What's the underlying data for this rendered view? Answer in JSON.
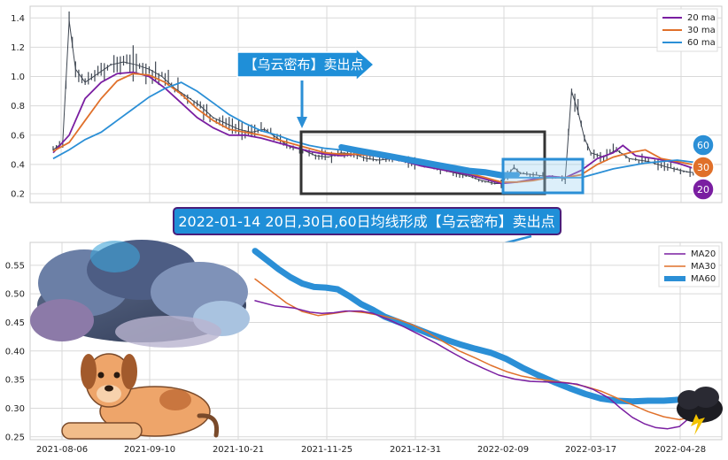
{
  "annotations": {
    "top_arrow_label": "【乌云密布】卖出点",
    "bottom_banner": "2022-01-14 20日,30日,60日均线形成【乌云密布】卖出点"
  },
  "badges": [
    "60",
    "30",
    "20"
  ],
  "colors": {
    "ma20": "#7a1ea1",
    "ma30": "#e0702a",
    "ma60": "#2b8fd6",
    "candle": "#3f4752",
    "banner_bg": "#1f8fd8",
    "banner_border": "#4a1d7a"
  },
  "chart_data": [
    {
      "type": "line",
      "x_ticks": [],
      "ylim": [
        0.14,
        1.48
      ],
      "y_ticks": [
        0.2,
        0.4,
        0.6,
        0.8,
        1.0,
        1.2,
        1.4
      ],
      "y_tick_labels": [
        "0.2",
        "0.4",
        "0.6",
        "0.8",
        "1.0",
        "1.2",
        "1.4"
      ],
      "grid": true,
      "legend": "top-right",
      "price_series": [
        [
          0,
          0.5
        ],
        [
          3,
          0.55
        ],
        [
          5,
          1.38
        ],
        [
          7,
          1.05
        ],
        [
          10,
          0.96
        ],
        [
          14,
          1.02
        ],
        [
          18,
          1.08
        ],
        [
          22,
          1.1
        ],
        [
          26,
          1.08
        ],
        [
          30,
          1.05
        ],
        [
          34,
          1.0
        ],
        [
          38,
          0.92
        ],
        [
          42,
          0.86
        ],
        [
          46,
          0.8
        ],
        [
          50,
          0.72
        ],
        [
          54,
          0.68
        ],
        [
          58,
          0.64
        ],
        [
          62,
          0.62
        ],
        [
          66,
          0.64
        ],
        [
          70,
          0.58
        ],
        [
          74,
          0.52
        ],
        [
          78,
          0.5
        ],
        [
          82,
          0.46
        ],
        [
          86,
          0.45
        ],
        [
          90,
          0.48
        ],
        [
          94,
          0.47
        ],
        [
          98,
          0.44
        ],
        [
          102,
          0.43
        ],
        [
          106,
          0.44
        ],
        [
          110,
          0.42
        ],
        [
          114,
          0.4
        ],
        [
          118,
          0.38
        ],
        [
          122,
          0.36
        ],
        [
          126,
          0.34
        ],
        [
          130,
          0.32
        ],
        [
          134,
          0.29
        ],
        [
          138,
          0.27
        ],
        [
          140,
          0.27
        ],
        [
          142,
          0.33
        ],
        [
          144,
          0.38
        ],
        [
          146,
          0.34
        ],
        [
          150,
          0.33
        ],
        [
          154,
          0.32
        ],
        [
          158,
          0.31
        ],
        [
          160,
          0.3
        ],
        [
          162,
          0.9
        ],
        [
          164,
          0.76
        ],
        [
          166,
          0.58
        ],
        [
          168,
          0.48
        ],
        [
          172,
          0.45
        ],
        [
          176,
          0.5
        ],
        [
          180,
          0.44
        ],
        [
          186,
          0.42
        ],
        [
          192,
          0.38
        ],
        [
          198,
          0.35
        ],
        [
          202,
          0.34
        ]
      ],
      "series": [
        {
          "name": "20 ma",
          "values": [
            [
              0,
              0.48
            ],
            [
              5,
              0.6
            ],
            [
              10,
              0.85
            ],
            [
              15,
              0.96
            ],
            [
              20,
              1.02
            ],
            [
              25,
              1.03
            ],
            [
              30,
              1.0
            ],
            [
              35,
              0.92
            ],
            [
              40,
              0.82
            ],
            [
              45,
              0.72
            ],
            [
              50,
              0.65
            ],
            [
              55,
              0.6
            ],
            [
              60,
              0.6
            ],
            [
              65,
              0.58
            ],
            [
              70,
              0.55
            ],
            [
              75,
              0.52
            ],
            [
              80,
              0.49
            ],
            [
              85,
              0.47
            ],
            [
              90,
              0.46
            ],
            [
              95,
              0.47
            ],
            [
              100,
              0.46
            ],
            [
              105,
              0.44
            ],
            [
              110,
              0.42
            ],
            [
              115,
              0.39
            ],
            [
              120,
              0.37
            ],
            [
              125,
              0.35
            ],
            [
              130,
              0.33
            ],
            [
              135,
              0.3
            ],
            [
              140,
              0.27
            ],
            [
              145,
              0.28
            ],
            [
              150,
              0.3
            ],
            [
              155,
              0.32
            ],
            [
              160,
              0.31
            ],
            [
              165,
              0.36
            ],
            [
              170,
              0.44
            ],
            [
              175,
              0.48
            ],
            [
              178,
              0.53
            ],
            [
              182,
              0.46
            ],
            [
              188,
              0.44
            ],
            [
              195,
              0.41
            ],
            [
              202,
              0.36
            ]
          ]
        },
        {
          "name": "30 ma",
          "values": [
            [
              0,
              0.49
            ],
            [
              5,
              0.55
            ],
            [
              10,
              0.7
            ],
            [
              15,
              0.85
            ],
            [
              20,
              0.97
            ],
            [
              25,
              1.02
            ],
            [
              30,
              1.01
            ],
            [
              35,
              0.96
            ],
            [
              40,
              0.88
            ],
            [
              45,
              0.78
            ],
            [
              50,
              0.7
            ],
            [
              55,
              0.64
            ],
            [
              60,
              0.62
            ],
            [
              65,
              0.6
            ],
            [
              70,
              0.57
            ],
            [
              75,
              0.54
            ],
            [
              80,
              0.51
            ],
            [
              85,
              0.48
            ],
            [
              90,
              0.47
            ],
            [
              95,
              0.47
            ],
            [
              100,
              0.46
            ],
            [
              105,
              0.45
            ],
            [
              110,
              0.43
            ],
            [
              115,
              0.41
            ],
            [
              120,
              0.38
            ],
            [
              125,
              0.36
            ],
            [
              130,
              0.34
            ],
            [
              135,
              0.31
            ],
            [
              140,
              0.28
            ],
            [
              145,
              0.28
            ],
            [
              150,
              0.29
            ],
            [
              155,
              0.31
            ],
            [
              160,
              0.31
            ],
            [
              165,
              0.33
            ],
            [
              170,
              0.4
            ],
            [
              175,
              0.45
            ],
            [
              180,
              0.48
            ],
            [
              185,
              0.5
            ],
            [
              190,
              0.44
            ],
            [
              195,
              0.42
            ],
            [
              202,
              0.39
            ]
          ]
        },
        {
          "name": "60 ma",
          "values": [
            [
              0,
              0.44
            ],
            [
              5,
              0.5
            ],
            [
              10,
              0.57
            ],
            [
              15,
              0.62
            ],
            [
              20,
              0.7
            ],
            [
              25,
              0.78
            ],
            [
              30,
              0.86
            ],
            [
              35,
              0.92
            ],
            [
              40,
              0.96
            ],
            [
              45,
              0.9
            ],
            [
              50,
              0.82
            ],
            [
              55,
              0.74
            ],
            [
              60,
              0.68
            ],
            [
              65,
              0.63
            ],
            [
              70,
              0.6
            ],
            [
              75,
              0.56
            ],
            [
              80,
              0.53
            ],
            [
              85,
              0.51
            ],
            [
              90,
              0.5
            ],
            [
              95,
              0.48
            ],
            [
              100,
              0.46
            ],
            [
              105,
              0.44
            ],
            [
              110,
              0.42
            ],
            [
              115,
              0.4
            ],
            [
              120,
              0.38
            ],
            [
              125,
              0.36
            ],
            [
              130,
              0.34
            ],
            [
              135,
              0.33
            ],
            [
              140,
              0.31
            ],
            [
              145,
              0.31
            ],
            [
              150,
              0.31
            ],
            [
              155,
              0.31
            ],
            [
              160,
              0.31
            ],
            [
              165,
              0.31
            ],
            [
              170,
              0.34
            ],
            [
              175,
              0.37
            ],
            [
              180,
              0.39
            ],
            [
              185,
              0.41
            ],
            [
              190,
              0.42
            ],
            [
              195,
              0.43
            ],
            [
              202,
              0.41
            ]
          ]
        }
      ]
    },
    {
      "type": "line",
      "x_ticks": [
        "2021-08-06",
        "2021-09-10",
        "2021-10-21",
        "2021-11-25",
        "2021-12-31",
        "2022-02-09",
        "2022-03-17",
        "2022-04-28"
      ],
      "ylim": [
        0.245,
        0.59
      ],
      "y_ticks": [
        0.25,
        0.3,
        0.35,
        0.4,
        0.45,
        0.5,
        0.55
      ],
      "y_tick_labels": [
        "0.25",
        "0.30",
        "0.35",
        "0.40",
        "0.45",
        "0.50",
        "0.55"
      ],
      "grid": true,
      "legend": "top-right",
      "series": [
        {
          "name": "MA20",
          "values": [
            [
              0,
              0.488
            ],
            [
              5,
              0.479
            ],
            [
              10,
              0.475
            ],
            [
              14,
              0.468
            ],
            [
              17,
              0.466
            ],
            [
              20,
              0.467
            ],
            [
              23,
              0.47
            ],
            [
              27,
              0.47
            ],
            [
              30,
              0.466
            ],
            [
              34,
              0.455
            ],
            [
              38,
              0.442
            ],
            [
              42,
              0.428
            ],
            [
              46,
              0.414
            ],
            [
              50,
              0.398
            ],
            [
              54,
              0.383
            ],
            [
              58,
              0.37
            ],
            [
              62,
              0.358
            ],
            [
              66,
              0.351
            ],
            [
              70,
              0.347
            ],
            [
              74,
              0.346
            ],
            [
              78,
              0.345
            ],
            [
              82,
              0.342
            ],
            [
              86,
              0.333
            ],
            [
              90,
              0.318
            ],
            [
              93,
              0.3
            ],
            [
              96,
              0.284
            ],
            [
              99,
              0.273
            ],
            [
              102,
              0.266
            ],
            [
              105,
              0.264
            ],
            [
              108,
              0.268
            ],
            [
              110,
              0.28
            ],
            [
              112,
              0.296
            ]
          ]
        },
        {
          "name": "MA30",
          "values": [
            [
              0,
              0.526
            ],
            [
              4,
              0.505
            ],
            [
              8,
              0.484
            ],
            [
              12,
              0.469
            ],
            [
              16,
              0.462
            ],
            [
              20,
              0.466
            ],
            [
              24,
              0.47
            ],
            [
              28,
              0.467
            ],
            [
              32,
              0.462
            ],
            [
              36,
              0.456
            ],
            [
              40,
              0.446
            ],
            [
              44,
              0.432
            ],
            [
              48,
              0.416
            ],
            [
              52,
              0.4
            ],
            [
              56,
              0.388
            ],
            [
              60,
              0.375
            ],
            [
              64,
              0.364
            ],
            [
              68,
              0.356
            ],
            [
              72,
              0.351
            ],
            [
              76,
              0.347
            ],
            [
              80,
              0.344
            ],
            [
              84,
              0.338
            ],
            [
              88,
              0.33
            ],
            [
              92,
              0.318
            ],
            [
              96,
              0.306
            ],
            [
              100,
              0.294
            ],
            [
              104,
              0.285
            ],
            [
              108,
              0.28
            ],
            [
              112,
              0.286
            ]
          ]
        },
        {
          "name": "MA60",
          "values": [
            [
              0,
              0.575
            ],
            [
              3,
              0.559
            ],
            [
              6,
              0.543
            ],
            [
              9,
              0.529
            ],
            [
              12,
              0.518
            ],
            [
              15,
              0.512
            ],
            [
              18,
              0.511
            ],
            [
              21,
              0.508
            ],
            [
              24,
              0.496
            ],
            [
              27,
              0.482
            ],
            [
              30,
              0.472
            ],
            [
              33,
              0.46
            ],
            [
              36,
              0.452
            ],
            [
              40,
              0.442
            ],
            [
              44,
              0.431
            ],
            [
              48,
              0.421
            ],
            [
              52,
              0.412
            ],
            [
              56,
              0.404
            ],
            [
              60,
              0.397
            ],
            [
              64,
              0.386
            ],
            [
              68,
              0.371
            ],
            [
              72,
              0.358
            ],
            [
              76,
              0.346
            ],
            [
              80,
              0.335
            ],
            [
              84,
              0.325
            ],
            [
              88,
              0.317
            ],
            [
              92,
              0.313
            ],
            [
              96,
              0.312
            ],
            [
              100,
              0.313
            ],
            [
              104,
              0.313
            ],
            [
              108,
              0.315
            ],
            [
              112,
              0.315
            ]
          ]
        }
      ]
    }
  ]
}
